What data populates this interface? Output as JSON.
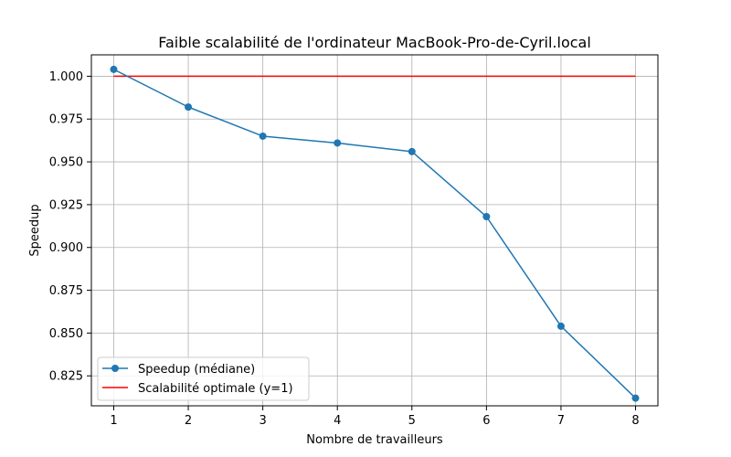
{
  "chart_data": {
    "type": "line",
    "title": "Faible scalabilité de l'ordinateur MacBook-Pro-de-Cyril.local",
    "xlabel": "Nombre de travailleurs",
    "ylabel": "Speedup",
    "x": [
      1,
      2,
      3,
      4,
      5,
      6,
      7,
      8
    ],
    "xticks": [
      "1",
      "2",
      "3",
      "4",
      "5",
      "6",
      "7",
      "8"
    ],
    "yticks": [
      "0.825",
      "0.850",
      "0.875",
      "0.900",
      "0.925",
      "0.950",
      "0.975",
      "1.000"
    ],
    "xlim": [
      0.7,
      8.3
    ],
    "ylim": [
      0.8075,
      1.0125
    ],
    "grid": true,
    "legend_position": "lower-left",
    "series": [
      {
        "name": "Speedup (médiane)",
        "values": [
          1.004,
          0.982,
          0.965,
          0.961,
          0.956,
          0.918,
          0.854,
          0.812
        ],
        "color": "#1f77b4",
        "marker": "circle"
      },
      {
        "name": "Scalabilité optimale (y=1)",
        "values": [
          1.0,
          1.0,
          1.0,
          1.0,
          1.0,
          1.0,
          1.0,
          1.0
        ],
        "color": "#ff0000",
        "marker": "none"
      }
    ]
  }
}
